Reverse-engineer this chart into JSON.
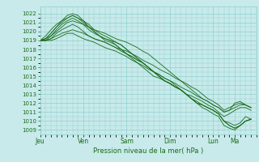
{
  "background_color": "#c8eaea",
  "grid_color": "#8fcfcf",
  "line_color": "#1a6b1a",
  "xlabel": "Pression niveau de la mer( hPa )",
  "ylim": [
    1008.5,
    1022.8
  ],
  "xlim_hours": 240,
  "yticks": [
    1009,
    1010,
    1011,
    1012,
    1013,
    1014,
    1015,
    1016,
    1017,
    1018,
    1019,
    1020,
    1021,
    1022
  ],
  "xtick_labels": [
    "Jeu",
    "Ven",
    "Sam",
    "Dim",
    "Lun",
    "Ma"
  ],
  "xtick_hours": [
    0,
    48,
    96,
    144,
    192,
    216
  ],
  "lines": [
    {
      "pts": [
        [
          0,
          1019
        ],
        [
          6,
          1019.2
        ],
        [
          12,
          1019.5
        ],
        [
          18,
          1020
        ],
        [
          24,
          1020.5
        ],
        [
          30,
          1021
        ],
        [
          36,
          1021.2
        ],
        [
          42,
          1021.0
        ],
        [
          48,
          1020.8
        ],
        [
          54,
          1020.5
        ],
        [
          60,
          1020.2
        ],
        [
          66,
          1020.0
        ],
        [
          72,
          1019.8
        ],
        [
          78,
          1019.5
        ],
        [
          84,
          1019.2
        ],
        [
          90,
          1019.0
        ],
        [
          96,
          1018.8
        ],
        [
          102,
          1018.5
        ],
        [
          108,
          1018.2
        ],
        [
          114,
          1017.8
        ],
        [
          120,
          1017.5
        ],
        [
          126,
          1017.0
        ],
        [
          132,
          1016.5
        ],
        [
          138,
          1016.0
        ],
        [
          144,
          1015.5
        ],
        [
          150,
          1015.0
        ],
        [
          156,
          1014.5
        ],
        [
          162,
          1014.0
        ],
        [
          168,
          1013.5
        ],
        [
          174,
          1013.0
        ],
        [
          180,
          1012.5
        ],
        [
          186,
          1012.2
        ],
        [
          192,
          1011.8
        ],
        [
          198,
          1011.5
        ],
        [
          204,
          1011.0
        ],
        [
          210,
          1011.2
        ],
        [
          216,
          1012.0
        ],
        [
          222,
          1012.2
        ],
        [
          228,
          1011.8
        ],
        [
          234,
          1011.5
        ]
      ]
    },
    {
      "pts": [
        [
          0,
          1019
        ],
        [
          6,
          1019.0
        ],
        [
          12,
          1019.2
        ],
        [
          18,
          1019.5
        ],
        [
          24,
          1019.8
        ],
        [
          30,
          1020.0
        ],
        [
          36,
          1020.2
        ],
        [
          42,
          1020.0
        ],
        [
          48,
          1019.8
        ],
        [
          54,
          1019.5
        ],
        [
          60,
          1019.2
        ],
        [
          66,
          1019.0
        ],
        [
          72,
          1018.8
        ],
        [
          78,
          1018.5
        ],
        [
          84,
          1018.2
        ],
        [
          90,
          1018.0
        ],
        [
          96,
          1017.8
        ],
        [
          102,
          1017.5
        ],
        [
          108,
          1017.2
        ],
        [
          114,
          1016.8
        ],
        [
          120,
          1016.5
        ],
        [
          126,
          1016.2
        ],
        [
          132,
          1015.8
        ],
        [
          138,
          1015.5
        ],
        [
          144,
          1015.2
        ],
        [
          150,
          1014.8
        ],
        [
          156,
          1014.5
        ],
        [
          162,
          1014.2
        ],
        [
          168,
          1013.8
        ],
        [
          174,
          1013.5
        ],
        [
          180,
          1013.0
        ],
        [
          186,
          1012.5
        ],
        [
          192,
          1012.2
        ],
        [
          198,
          1011.8
        ],
        [
          204,
          1011.2
        ],
        [
          210,
          1011.5
        ],
        [
          216,
          1011.8
        ],
        [
          222,
          1012.0
        ],
        [
          228,
          1011.8
        ],
        [
          234,
          1011.5
        ]
      ]
    },
    {
      "pts": [
        [
          0,
          1019
        ],
        [
          6,
          1019.5
        ],
        [
          12,
          1020.2
        ],
        [
          18,
          1020.8
        ],
        [
          24,
          1021.2
        ],
        [
          30,
          1021.5
        ],
        [
          36,
          1021.8
        ],
        [
          42,
          1021.5
        ],
        [
          48,
          1021.2
        ],
        [
          54,
          1020.8
        ],
        [
          60,
          1020.2
        ],
        [
          66,
          1019.8
        ],
        [
          72,
          1019.5
        ],
        [
          78,
          1019.2
        ],
        [
          84,
          1018.8
        ],
        [
          90,
          1018.5
        ],
        [
          96,
          1018.0
        ],
        [
          102,
          1017.5
        ],
        [
          108,
          1017.0
        ],
        [
          114,
          1016.5
        ],
        [
          120,
          1016.0
        ],
        [
          126,
          1015.5
        ],
        [
          132,
          1015.2
        ],
        [
          138,
          1014.8
        ],
        [
          144,
          1014.5
        ],
        [
          150,
          1014.0
        ],
        [
          156,
          1013.5
        ],
        [
          162,
          1013.0
        ],
        [
          168,
          1012.5
        ],
        [
          174,
          1012.0
        ],
        [
          180,
          1011.8
        ],
        [
          186,
          1011.5
        ],
        [
          192,
          1011.2
        ],
        [
          198,
          1010.8
        ],
        [
          204,
          1010.0
        ],
        [
          210,
          1009.8
        ],
        [
          216,
          1009.5
        ],
        [
          222,
          1009.8
        ],
        [
          228,
          1010.5
        ],
        [
          234,
          1010.2
        ]
      ]
    },
    {
      "pts": [
        [
          0,
          1019
        ],
        [
          6,
          1019.2
        ],
        [
          12,
          1019.8
        ],
        [
          18,
          1020.5
        ],
        [
          24,
          1021.2
        ],
        [
          30,
          1021.8
        ],
        [
          36,
          1022.0
        ],
        [
          42,
          1021.8
        ],
        [
          48,
          1021.2
        ],
        [
          54,
          1020.5
        ],
        [
          60,
          1020.0
        ],
        [
          66,
          1019.5
        ],
        [
          72,
          1019.2
        ],
        [
          78,
          1019.0
        ],
        [
          84,
          1018.8
        ],
        [
          90,
          1018.5
        ],
        [
          96,
          1018.0
        ],
        [
          102,
          1017.5
        ],
        [
          108,
          1017.0
        ],
        [
          114,
          1016.5
        ],
        [
          120,
          1016.0
        ],
        [
          126,
          1015.5
        ],
        [
          132,
          1015.0
        ],
        [
          138,
          1014.5
        ],
        [
          144,
          1014.2
        ],
        [
          150,
          1013.8
        ],
        [
          156,
          1013.5
        ],
        [
          162,
          1013.0
        ],
        [
          168,
          1012.5
        ],
        [
          174,
          1012.0
        ],
        [
          180,
          1011.5
        ],
        [
          186,
          1011.2
        ],
        [
          192,
          1010.8
        ],
        [
          198,
          1010.5
        ],
        [
          204,
          1009.5
        ],
        [
          210,
          1009.2
        ],
        [
          216,
          1009.0
        ],
        [
          222,
          1009.5
        ],
        [
          228,
          1010.0
        ],
        [
          234,
          1010.2
        ]
      ]
    },
    {
      "pts": [
        [
          0,
          1019
        ],
        [
          6,
          1019.0
        ],
        [
          12,
          1019.2
        ],
        [
          18,
          1019.8
        ],
        [
          24,
          1020.2
        ],
        [
          30,
          1020.5
        ],
        [
          36,
          1020.8
        ],
        [
          42,
          1020.5
        ],
        [
          48,
          1020.0
        ],
        [
          54,
          1019.5
        ],
        [
          60,
          1019.2
        ],
        [
          66,
          1019.0
        ],
        [
          72,
          1018.8
        ],
        [
          78,
          1018.5
        ],
        [
          84,
          1018.2
        ],
        [
          90,
          1017.8
        ],
        [
          96,
          1017.5
        ],
        [
          102,
          1017.2
        ],
        [
          108,
          1016.8
        ],
        [
          114,
          1016.5
        ],
        [
          120,
          1016.0
        ],
        [
          126,
          1015.5
        ],
        [
          132,
          1015.0
        ],
        [
          138,
          1014.5
        ],
        [
          144,
          1014.2
        ],
        [
          150,
          1013.8
        ],
        [
          156,
          1013.5
        ],
        [
          162,
          1013.0
        ],
        [
          168,
          1012.8
        ],
        [
          174,
          1012.5
        ],
        [
          180,
          1012.2
        ],
        [
          186,
          1011.8
        ],
        [
          192,
          1011.5
        ],
        [
          198,
          1011.0
        ],
        [
          204,
          1010.5
        ],
        [
          210,
          1010.8
        ],
        [
          216,
          1011.2
        ],
        [
          222,
          1011.5
        ],
        [
          228,
          1011.5
        ],
        [
          234,
          1011.2
        ]
      ]
    },
    {
      "pts": [
        [
          0,
          1019
        ],
        [
          6,
          1019.0
        ],
        [
          12,
          1019.5
        ],
        [
          18,
          1020.2
        ],
        [
          24,
          1020.8
        ],
        [
          30,
          1021.2
        ],
        [
          36,
          1021.5
        ],
        [
          42,
          1021.2
        ],
        [
          48,
          1020.8
        ],
        [
          54,
          1020.2
        ],
        [
          60,
          1019.8
        ],
        [
          66,
          1019.5
        ],
        [
          72,
          1019.2
        ],
        [
          78,
          1019.0
        ],
        [
          84,
          1018.5
        ],
        [
          90,
          1018.0
        ],
        [
          96,
          1017.5
        ],
        [
          102,
          1017.2
        ],
        [
          108,
          1016.8
        ],
        [
          114,
          1016.5
        ],
        [
          120,
          1016.0
        ],
        [
          126,
          1015.5
        ],
        [
          132,
          1015.0
        ],
        [
          138,
          1014.5
        ],
        [
          144,
          1014.2
        ],
        [
          150,
          1013.8
        ],
        [
          156,
          1013.5
        ],
        [
          162,
          1013.0
        ],
        [
          168,
          1012.5
        ],
        [
          174,
          1012.2
        ],
        [
          180,
          1011.8
        ],
        [
          186,
          1011.5
        ],
        [
          192,
          1011.2
        ],
        [
          198,
          1010.8
        ],
        [
          204,
          1010.0
        ],
        [
          210,
          1009.5
        ],
        [
          216,
          1009.2
        ],
        [
          222,
          1009.5
        ],
        [
          228,
          1010.0
        ],
        [
          234,
          1010.2
        ]
      ]
    },
    {
      "pts": [
        [
          0,
          1019
        ],
        [
          6,
          1019.0
        ],
        [
          12,
          1019.0
        ],
        [
          18,
          1019.2
        ],
        [
          24,
          1019.5
        ],
        [
          30,
          1019.8
        ],
        [
          36,
          1019.8
        ],
        [
          42,
          1019.5
        ],
        [
          48,
          1019.2
        ],
        [
          54,
          1019.0
        ],
        [
          60,
          1018.8
        ],
        [
          66,
          1018.5
        ],
        [
          72,
          1018.2
        ],
        [
          78,
          1018.0
        ],
        [
          84,
          1017.8
        ],
        [
          90,
          1017.5
        ],
        [
          96,
          1017.2
        ],
        [
          102,
          1016.8
        ],
        [
          108,
          1016.5
        ],
        [
          114,
          1016.2
        ],
        [
          120,
          1015.8
        ],
        [
          126,
          1015.5
        ],
        [
          132,
          1015.2
        ],
        [
          138,
          1014.8
        ],
        [
          144,
          1014.5
        ],
        [
          150,
          1014.2
        ],
        [
          156,
          1013.8
        ],
        [
          162,
          1013.5
        ],
        [
          168,
          1013.2
        ],
        [
          174,
          1012.8
        ],
        [
          180,
          1012.5
        ],
        [
          186,
          1012.2
        ],
        [
          192,
          1011.8
        ],
        [
          198,
          1011.5
        ],
        [
          204,
          1011.0
        ],
        [
          210,
          1011.2
        ],
        [
          216,
          1011.5
        ],
        [
          222,
          1011.8
        ],
        [
          228,
          1011.8
        ],
        [
          234,
          1011.5
        ]
      ]
    },
    {
      "pts": [
        [
          0,
          1019
        ],
        [
          6,
          1019.2
        ],
        [
          12,
          1019.8
        ],
        [
          18,
          1020.5
        ],
        [
          24,
          1021.0
        ],
        [
          30,
          1021.5
        ],
        [
          36,
          1021.8
        ],
        [
          42,
          1021.5
        ],
        [
          48,
          1021.0
        ],
        [
          54,
          1020.5
        ],
        [
          60,
          1020.0
        ],
        [
          66,
          1019.5
        ],
        [
          72,
          1019.0
        ],
        [
          78,
          1018.8
        ],
        [
          84,
          1018.5
        ],
        [
          90,
          1018.0
        ],
        [
          96,
          1017.5
        ],
        [
          102,
          1017.0
        ],
        [
          108,
          1016.5
        ],
        [
          114,
          1016.0
        ],
        [
          120,
          1015.5
        ],
        [
          126,
          1015.0
        ],
        [
          132,
          1014.8
        ],
        [
          138,
          1014.5
        ],
        [
          144,
          1014.2
        ],
        [
          150,
          1013.8
        ],
        [
          156,
          1013.5
        ],
        [
          162,
          1013.0
        ],
        [
          168,
          1012.5
        ],
        [
          174,
          1012.0
        ],
        [
          180,
          1011.8
        ],
        [
          186,
          1011.5
        ],
        [
          192,
          1011.2
        ],
        [
          198,
          1010.8
        ],
        [
          204,
          1010.0
        ],
        [
          210,
          1009.5
        ],
        [
          216,
          1009.2
        ],
        [
          222,
          1009.5
        ],
        [
          228,
          1010.0
        ],
        [
          234,
          1010.2
        ]
      ]
    }
  ]
}
